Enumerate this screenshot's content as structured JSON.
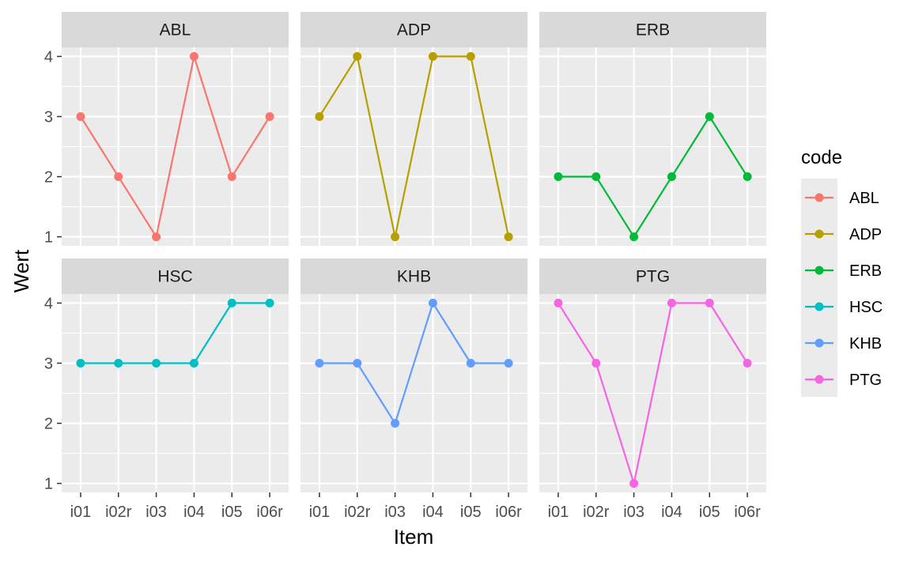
{
  "chart_data": {
    "type": "line",
    "facet_by": "code",
    "xlabel": "Item",
    "ylabel": "Wert",
    "categories": [
      "i01",
      "i02r",
      "i03",
      "i04",
      "i05",
      "i06r"
    ],
    "yticks": [
      1,
      2,
      3,
      4
    ],
    "ylim": [
      0.85,
      4.15
    ],
    "grid": true,
    "legend": {
      "title": "code",
      "position": "right"
    },
    "series": [
      {
        "name": "ABL",
        "color": "#F8766D",
        "values": [
          3,
          2,
          1,
          4,
          2,
          3
        ]
      },
      {
        "name": "ADP",
        "color": "#B79F00",
        "values": [
          3,
          4,
          1,
          4,
          4,
          1
        ]
      },
      {
        "name": "ERB",
        "color": "#00BA38",
        "values": [
          2,
          2,
          1,
          2,
          3,
          2
        ]
      },
      {
        "name": "HSC",
        "color": "#00BFC4",
        "values": [
          3,
          3,
          3,
          3,
          4,
          4
        ]
      },
      {
        "name": "KHB",
        "color": "#619CFF",
        "values": [
          3,
          3,
          2,
          4,
          3,
          3
        ]
      },
      {
        "name": "PTG",
        "color": "#F564E3",
        "values": [
          4,
          3,
          1,
          4,
          4,
          3
        ]
      }
    ]
  }
}
